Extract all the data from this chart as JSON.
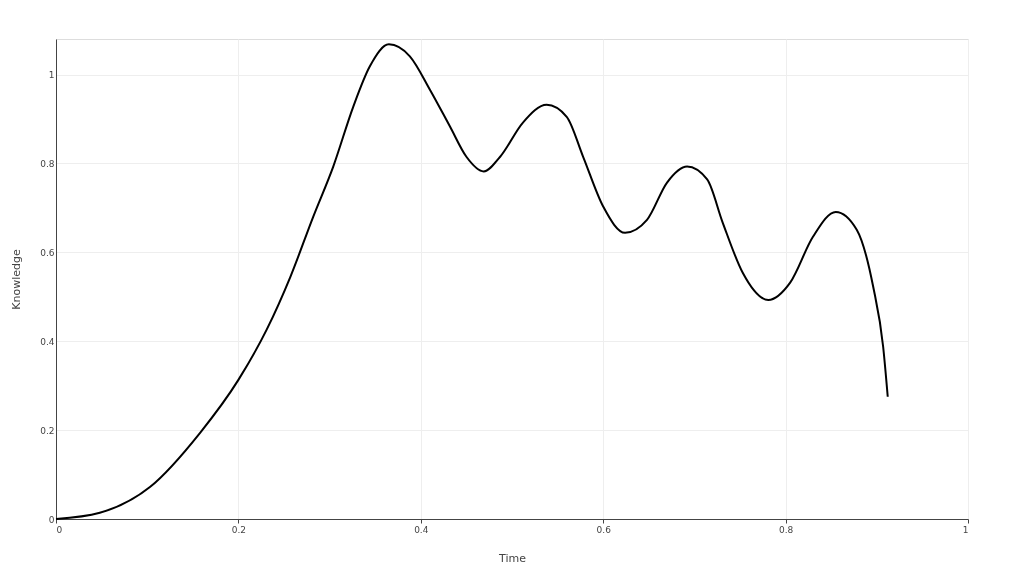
{
  "chart_data": {
    "type": "line",
    "xlabel": "Time",
    "ylabel": "Knowledge",
    "x": [
      0,
      0.048,
      0.103,
      0.158,
      0.2,
      0.231,
      0.257,
      0.282,
      0.304,
      0.326,
      0.344,
      0.365,
      0.388,
      0.41,
      0.432,
      0.45,
      0.469,
      0.487,
      0.512,
      0.538,
      0.56,
      0.578,
      0.6,
      0.624,
      0.648,
      0.67,
      0.692,
      0.714,
      0.731,
      0.753,
      0.781,
      0.805,
      0.83,
      0.855,
      0.878,
      0.896,
      0.907,
      0.912
    ],
    "series": [
      {
        "color": "#000000",
        "values": [
          0,
          0.014,
          0.072,
          0.194,
          0.313,
          0.426,
          0.545,
          0.68,
          0.793,
          0.928,
          1.018,
          1.068,
          1.041,
          0.966,
          0.883,
          0.815,
          0.782,
          0.815,
          0.892,
          0.932,
          0.905,
          0.815,
          0.703,
          0.644,
          0.673,
          0.757,
          0.793,
          0.764,
          0.667,
          0.554,
          0.493,
          0.532,
          0.635,
          0.691,
          0.651,
          0.523,
          0.387,
          0.275
        ]
      }
    ],
    "xlim": [
      0,
      1
    ],
    "xticks": [
      0,
      0.2,
      0.4,
      0.6,
      0.8,
      1
    ],
    "ylim": [
      0,
      1.08
    ],
    "yticks": [
      0,
      0.2,
      0.4,
      0.6,
      0.8,
      1
    ],
    "grid": true,
    "marker": "none",
    "line_style": "solid"
  }
}
